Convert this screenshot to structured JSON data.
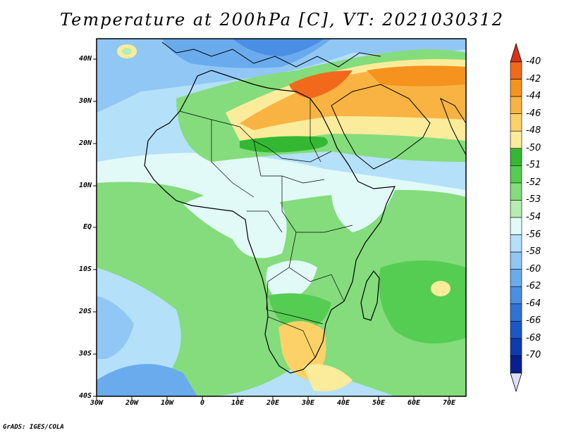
{
  "title": "Temperature at 200hPa [C], VT: 2021030312",
  "footer": "GrADS: IGES/COLA",
  "map": {
    "type": "filled-contour map",
    "region": "Africa",
    "lat_range": [
      -40,
      45
    ],
    "lon_range": [
      -30,
      75
    ],
    "lat_ticks": [
      "40N",
      "30N",
      "20N",
      "10N",
      "EQ",
      "10S",
      "20S",
      "30S",
      "40S"
    ],
    "lon_ticks": [
      "30W",
      "20W",
      "10W",
      "0",
      "10E",
      "20E",
      "30E",
      "40E",
      "50E",
      "60E",
      "70E"
    ]
  },
  "colorbar": {
    "units": "C",
    "labels": [
      "-40",
      "-42",
      "-44",
      "-46",
      "-48",
      "-50",
      "-51",
      "-52",
      "-53",
      "-54",
      "-56",
      "-58",
      "-60",
      "-62",
      "-64",
      "-66",
      "-68",
      "-70"
    ],
    "colors": [
      "#d8341c",
      "#f2691c",
      "#f5931e",
      "#f9b343",
      "#fcd268",
      "#fbec9c",
      "#34b833",
      "#55cd52",
      "#84dc7c",
      "#b5eeb0",
      "#e1faf7",
      "#b4e0fa",
      "#90c7f5",
      "#6aabed",
      "#4a8fe4",
      "#2e73d6",
      "#1a58c7",
      "#0d3bb0",
      "#07208f",
      "#dfe0ff"
    ]
  },
  "colors": {
    "ocean_lightblue": "#b4e0fa",
    "coast": "#000000"
  }
}
